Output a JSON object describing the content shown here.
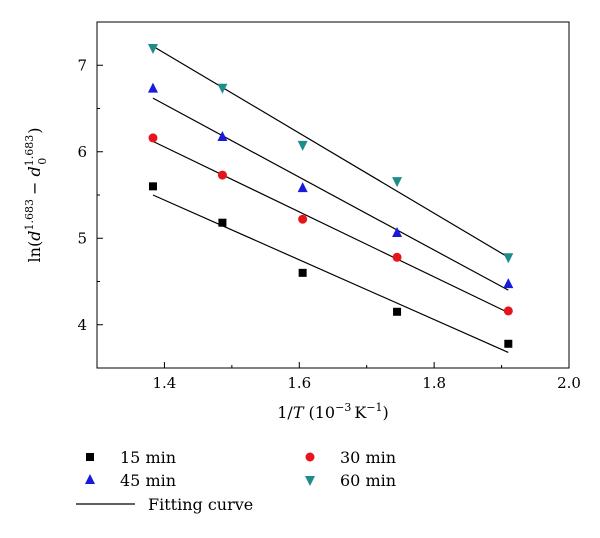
{
  "chart_data": {
    "type": "scatter",
    "title": "",
    "xlabel": "1/T (10^-3 K^-1)",
    "ylabel": "ln(d^1.683 − d0^1.683)",
    "xlim": [
      1.3,
      2.0
    ],
    "ylim": [
      3.5,
      7.5
    ],
    "xticks": [
      1.4,
      1.6,
      1.8,
      2.0
    ],
    "yticks": [
      4,
      5,
      6,
      7
    ],
    "x": [
      1.383,
      1.486,
      1.605,
      1.745,
      1.91
    ],
    "series": [
      {
        "name": "15 min",
        "marker": "square",
        "color": "#000000",
        "values": [
          5.6,
          5.18,
          4.6,
          4.15,
          3.78
        ],
        "fit": [
          [
            1.383,
            5.5
          ],
          [
            1.91,
            3.68
          ]
        ]
      },
      {
        "name": "30 min",
        "marker": "circle",
        "color": "#e8141b",
        "values": [
          6.16,
          5.73,
          5.22,
          4.78,
          4.16
        ],
        "fit": [
          [
            1.383,
            6.12
          ],
          [
            1.91,
            4.14
          ]
        ]
      },
      {
        "name": "45 min",
        "marker": "triangle-up",
        "color": "#1a1adb",
        "values": [
          6.73,
          6.17,
          5.58,
          5.06,
          4.47
        ],
        "fit": [
          [
            1.383,
            6.62
          ],
          [
            1.91,
            4.4
          ]
        ]
      },
      {
        "name": "60 min",
        "marker": "triangle-down",
        "color": "#1f8c8c",
        "values": [
          7.2,
          6.74,
          6.08,
          5.66,
          4.78
        ],
        "fit": [
          [
            1.383,
            7.22
          ],
          [
            1.91,
            4.78
          ]
        ]
      }
    ],
    "fit_label": "Fitting curve",
    "grid": false,
    "legend": "bottom"
  }
}
